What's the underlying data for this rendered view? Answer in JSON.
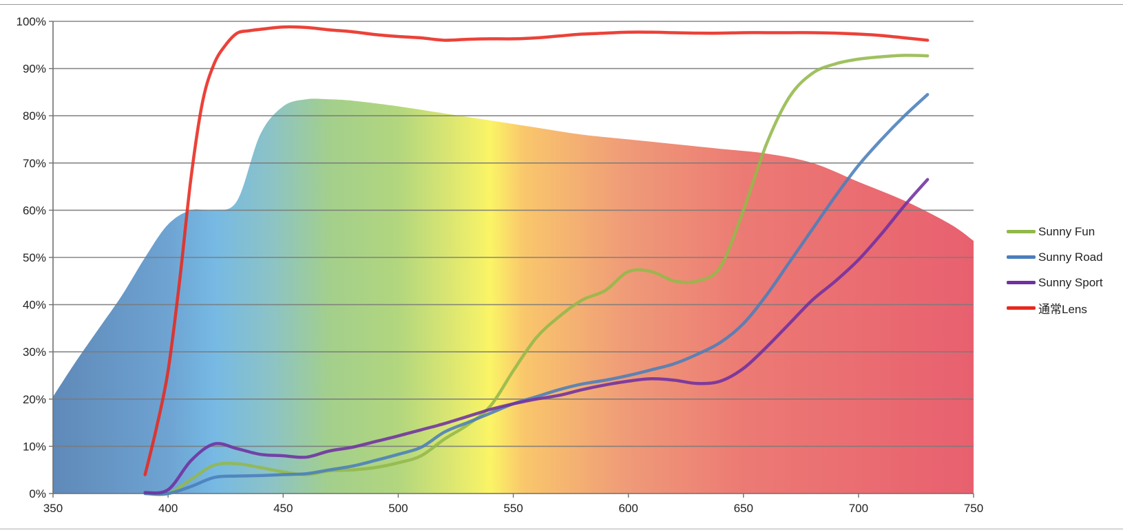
{
  "chart_data": {
    "type": "line",
    "title": "",
    "xlabel": "",
    "ylabel": "",
    "xlim": [
      350,
      750
    ],
    "ylim": [
      0,
      100
    ],
    "x_ticks": [
      350,
      400,
      450,
      500,
      550,
      600,
      650,
      700,
      750
    ],
    "y_ticks": [
      0,
      10,
      20,
      30,
      40,
      50,
      60,
      70,
      80,
      90,
      100
    ],
    "y_tick_suffix": "%",
    "grid": true,
    "legend_position": "right",
    "background_spectrum": {
      "type": "area",
      "x": [
        350,
        360,
        370,
        380,
        390,
        400,
        410,
        420,
        430,
        440,
        450,
        460,
        470,
        480,
        500,
        520,
        540,
        560,
        580,
        600,
        620,
        640,
        660,
        680,
        700,
        720,
        740,
        750
      ],
      "values": [
        20.5,
        28,
        35,
        42,
        50,
        57,
        60,
        60,
        62,
        76,
        82,
        83.5,
        83.5,
        83.2,
        82,
        80.5,
        79,
        77.5,
        76,
        75,
        74,
        73,
        72,
        70,
        66,
        62,
        57,
        53.5
      ],
      "colors": [
        {
          "x": 350,
          "color": "#5f89b8"
        },
        {
          "x": 400,
          "color": "#6ea3d2"
        },
        {
          "x": 420,
          "color": "#76b9e4"
        },
        {
          "x": 445,
          "color": "#8cc3c6"
        },
        {
          "x": 470,
          "color": "#a3cf8c"
        },
        {
          "x": 500,
          "color": "#b2d67e"
        },
        {
          "x": 525,
          "color": "#dfe870"
        },
        {
          "x": 540,
          "color": "#fbf466"
        },
        {
          "x": 555,
          "color": "#f9c66c"
        },
        {
          "x": 600,
          "color": "#ef9a78"
        },
        {
          "x": 650,
          "color": "#ec7a74"
        },
        {
          "x": 750,
          "color": "#e8606f"
        }
      ]
    },
    "series": [
      {
        "name": "Sunny Fun",
        "color": "#93b84a",
        "x": [
          390,
          400,
          410,
          420,
          430,
          440,
          450,
          460,
          470,
          480,
          490,
          500,
          510,
          520,
          530,
          540,
          550,
          560,
          570,
          580,
          590,
          600,
          610,
          620,
          630,
          640,
          650,
          660,
          670,
          680,
          690,
          700,
          710,
          720,
          730
        ],
        "values": [
          0,
          0,
          3,
          6,
          6.3,
          5.5,
          4.6,
          4,
          4.8,
          5,
          5.5,
          6.5,
          8,
          11.5,
          14.5,
          18.5,
          26,
          33,
          37.5,
          41,
          43,
          47,
          47,
          45,
          45,
          48,
          60,
          74,
          84,
          89,
          91,
          92,
          92.5,
          92.8,
          92.7
        ]
      },
      {
        "name": "Sunny Road",
        "color": "#4a7ebb",
        "x": [
          390,
          400,
          410,
          420,
          430,
          440,
          450,
          460,
          470,
          480,
          490,
          500,
          510,
          520,
          530,
          540,
          550,
          560,
          570,
          580,
          590,
          600,
          610,
          620,
          630,
          640,
          650,
          660,
          670,
          680,
          690,
          700,
          710,
          720,
          730
        ],
        "values": [
          0,
          0,
          1.5,
          3.4,
          3.7,
          3.8,
          4,
          4.2,
          5,
          5.8,
          7,
          8.3,
          9.8,
          13,
          15,
          17,
          19,
          20.5,
          22,
          23.2,
          24,
          25,
          26.2,
          27.5,
          29.5,
          32,
          36,
          42,
          49,
          56,
          63,
          69.5,
          75,
          80,
          84.5
        ]
      },
      {
        "name": "Sunny Sport",
        "color": "#7030a0",
        "x": [
          390,
          400,
          410,
          420,
          430,
          440,
          450,
          460,
          470,
          480,
          490,
          500,
          510,
          520,
          530,
          540,
          550,
          560,
          570,
          580,
          590,
          600,
          610,
          620,
          630,
          640,
          650,
          660,
          670,
          680,
          690,
          700,
          710,
          720,
          730
        ],
        "values": [
          0.2,
          0.8,
          7,
          10.5,
          9.5,
          8.3,
          8,
          7.7,
          9,
          9.8,
          11,
          12.2,
          13.5,
          14.8,
          16.3,
          17.8,
          19,
          20,
          20.8,
          22,
          23,
          23.8,
          24.3,
          24,
          23.3,
          23.8,
          26.5,
          31,
          36,
          41,
          45,
          49.5,
          55,
          61,
          66.5
        ]
      },
      {
        "name": "通常Lens",
        "color": "#e8281e",
        "x": [
          390,
          395,
          400,
          405,
          410,
          415,
          420,
          425,
          430,
          435,
          440,
          450,
          460,
          470,
          480,
          490,
          500,
          510,
          520,
          530,
          540,
          550,
          560,
          570,
          580,
          590,
          600,
          610,
          620,
          630,
          640,
          650,
          660,
          670,
          680,
          690,
          700,
          710,
          720,
          730
        ],
        "values": [
          4,
          14,
          26,
          45,
          67,
          83,
          91,
          95,
          97.5,
          98,
          98.3,
          98.8,
          98.7,
          98.2,
          97.8,
          97.2,
          96.8,
          96.5,
          96,
          96.2,
          96.3,
          96.3,
          96.5,
          96.9,
          97.3,
          97.5,
          97.7,
          97.7,
          97.6,
          97.5,
          97.5,
          97.6,
          97.6,
          97.6,
          97.6,
          97.5,
          97.3,
          97,
          96.5,
          96
        ]
      }
    ]
  }
}
